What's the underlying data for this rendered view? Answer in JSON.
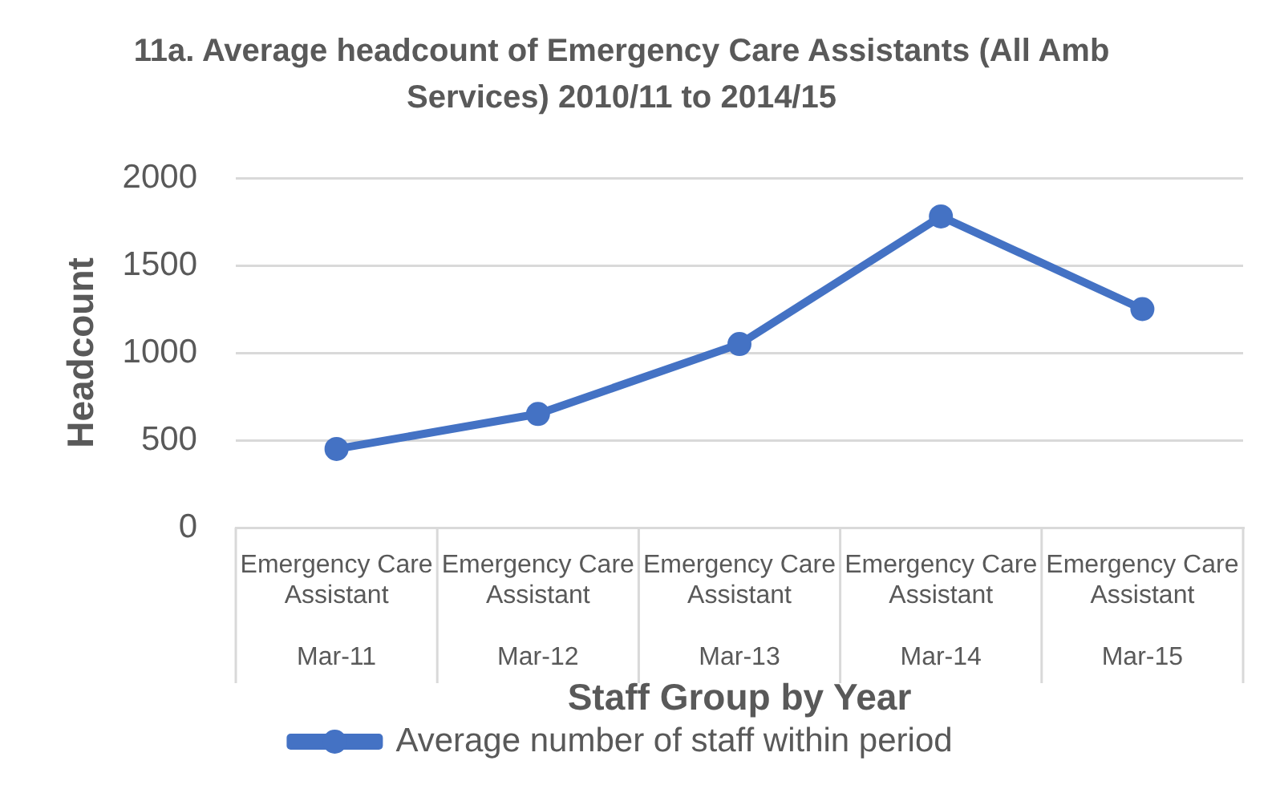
{
  "chart_data": {
    "type": "line",
    "title": "11a. Average headcount of Emergency Care Assistants (All Amb Services) 2010/11 to 2014/15",
    "xlabel": "Staff Group by Year",
    "ylabel": "Headcount",
    "categories": [
      "Emergency Care Assistant\nMar-11",
      "Emergency Care Assistant\nMar-12",
      "Emergency Care Assistant\nMar-13",
      "Emergency Care Assistant\nMar-14",
      "Emergency Care Assistant\nMar-15"
    ],
    "series": [
      {
        "name": "Average number of staff within period",
        "color": "#4472c4",
        "values": [
          450,
          650,
          1050,
          1780,
          1250
        ]
      }
    ],
    "ylim": [
      0,
      2000
    ],
    "yticks": [
      0,
      500,
      1000,
      1500,
      2000
    ],
    "grid": "y",
    "legend": "bottom",
    "marker": "circle",
    "line_style": "solid"
  }
}
